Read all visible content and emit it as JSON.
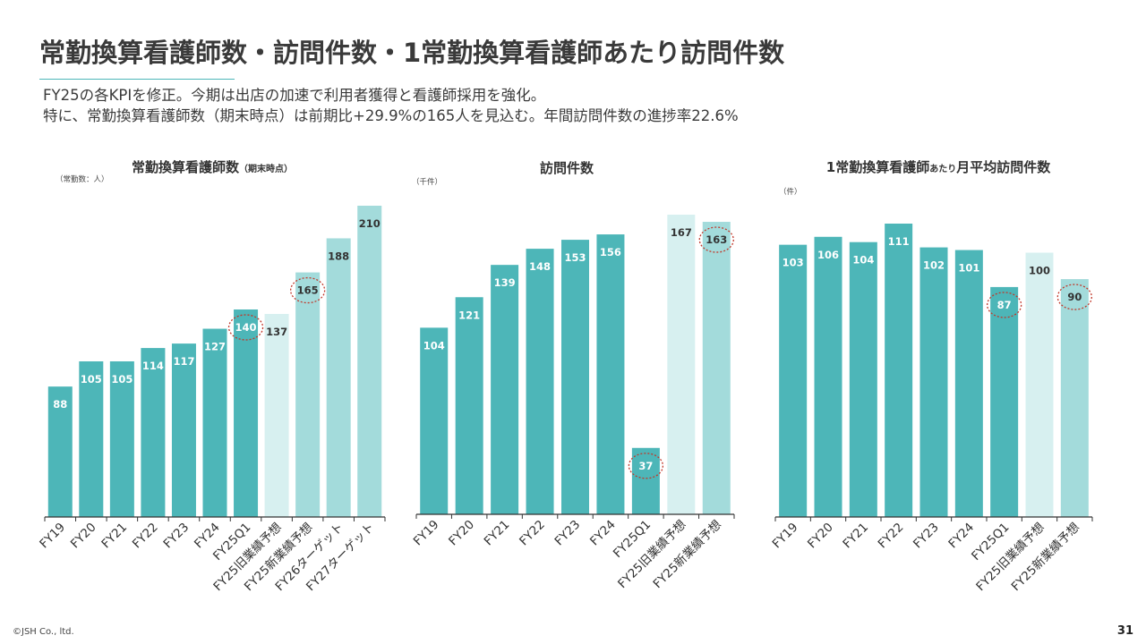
{
  "slide": {
    "title": "常勤換算看護師数・訪問件数・1常勤換算看護師あたり訪問件数",
    "lead_lines": [
      "FY25の各KPIを修正。今期は出店の加速で利用者獲得と看護師採用を強化。",
      "特に、常勤換算看護師数（期末時点）は前期比+29.9%の165人を見込む。年間訪問件数の進捗率22.6%"
    ],
    "copyright": "©JSH Co., ltd.",
    "page_number": "31"
  },
  "colors": {
    "actual": "#4db6b8",
    "forecast_old": "#d7f0f0",
    "forecast_new": "#a3dbdb",
    "highlight_ring": "#c0392b"
  },
  "chart_data": [
    {
      "type": "bar",
      "title": "常勤換算看護師数",
      "title_suffix": "（期末時点）",
      "unit_label": "（常勤数：人）",
      "categories": [
        "FY19",
        "FY20",
        "FY21",
        "FY22",
        "FY23",
        "FY24",
        "FY25Q1",
        "FY25旧業績予想",
        "FY25新業績予想",
        "FY26ターゲット",
        "FY27ターゲット"
      ],
      "values": [
        88,
        105,
        105,
        114,
        117,
        127,
        140,
        137,
        165,
        188,
        210
      ],
      "bar_styles": [
        "actual",
        "actual",
        "actual",
        "actual",
        "actual",
        "actual",
        "actual",
        "forecast_old",
        "forecast_new",
        "forecast_new",
        "forecast_new"
      ],
      "highlighted": [
        "FY25Q1",
        "FY25新業績予想"
      ],
      "ylim": [
        0,
        210
      ]
    },
    {
      "type": "bar",
      "title": "訪問件数",
      "title_suffix": "",
      "unit_label": "（千件）",
      "categories": [
        "FY19",
        "FY20",
        "FY21",
        "FY22",
        "FY23",
        "FY24",
        "FY25Q1",
        "FY25旧業績予想",
        "FY25新業績予想"
      ],
      "values": [
        104,
        121,
        139,
        148,
        153,
        156,
        37,
        167,
        163
      ],
      "bar_styles": [
        "actual",
        "actual",
        "actual",
        "actual",
        "actual",
        "actual",
        "actual",
        "forecast_old",
        "forecast_new"
      ],
      "highlighted": [
        "FY25Q1",
        "FY25新業績予想"
      ],
      "ylim": [
        0,
        167
      ]
    },
    {
      "type": "bar",
      "title": "1常勤換算看護師",
      "title_mid": "あたり",
      "title_suffix": "月平均訪問件数",
      "unit_label": "（件）",
      "categories": [
        "FY19",
        "FY20",
        "FY21",
        "FY22",
        "FY23",
        "FY24",
        "FY25Q1",
        "FY25旧業績予想",
        "FY25新業績予想"
      ],
      "values": [
        103,
        106,
        104,
        111,
        102,
        101,
        87,
        100,
        90
      ],
      "bar_styles": [
        "actual",
        "actual",
        "actual",
        "actual",
        "actual",
        "actual",
        "actual",
        "forecast_old",
        "forecast_new"
      ],
      "highlighted": [
        "FY25Q1",
        "FY25新業績予想"
      ],
      "ylim": [
        0,
        111
      ]
    }
  ]
}
